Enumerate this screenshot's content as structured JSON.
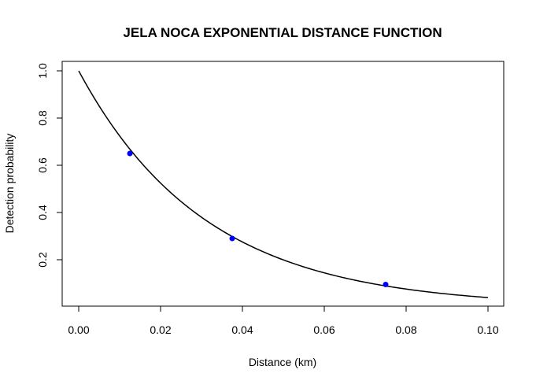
{
  "chart_data": {
    "type": "line",
    "title": "JELA NOCA EXPONENTIAL DISTANCE FUNCTION",
    "xlabel": "Distance (km)",
    "ylabel": "Detection probability",
    "xlim": [
      0.0,
      0.1
    ],
    "ylim": [
      0.04,
      1.0
    ],
    "x_ticks": [
      0.0,
      0.02,
      0.04,
      0.06,
      0.08,
      0.1
    ],
    "x_tick_labels": [
      "0.00",
      "0.02",
      "0.04",
      "0.06",
      "0.08",
      "0.10"
    ],
    "y_ticks": [
      0.2,
      0.4,
      0.6,
      0.8,
      1.0
    ],
    "y_tick_labels": [
      "0.2",
      "0.4",
      "0.6",
      "0.8",
      "1.0"
    ],
    "grid": false,
    "series": [
      {
        "kind": "curve",
        "function": "exp(-x/0.031)",
        "x_range": [
          0.0,
          0.1
        ],
        "color": "#000000"
      },
      {
        "kind": "points",
        "x": [
          0.0125,
          0.0375,
          0.075
        ],
        "y": [
          0.65,
          0.29,
          0.095
        ],
        "color": "#0000ff"
      }
    ]
  }
}
